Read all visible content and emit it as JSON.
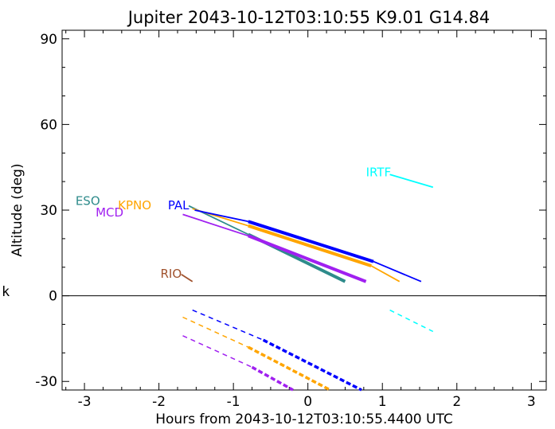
{
  "chart_data": {
    "type": "line",
    "title": "Jupiter 2043-10-12T03:10:55  K9.01  G14.84",
    "xlabel": "Hours from 2043-10-12T03:10:55.4400 UTC",
    "ylabel": "Altitude (deg)",
    "xlim": [
      -3.3,
      3.2
    ],
    "ylim": [
      -33,
      93
    ],
    "xticks": [
      -3,
      -2,
      -1,
      0,
      1,
      2,
      3
    ],
    "yticks": [
      -30,
      0,
      30,
      60,
      90
    ],
    "zero_line": true,
    "side_label": "k",
    "series": [
      {
        "name": "ESO",
        "color": "#2e8b8b",
        "label_at": [
          -3.12,
          33.5
        ],
        "thin": [
          [
            -1.6,
            31.5
          ],
          [
            -0.8,
            21.5
          ]
        ],
        "thick": [
          [
            -0.8,
            21.5
          ],
          [
            0.5,
            5.0
          ]
        ],
        "dashed": [],
        "dashed_thick": []
      },
      {
        "name": "MCD",
        "color": "#a020f0",
        "label_at": [
          -2.85,
          29.5
        ],
        "thin": [
          [
            -1.68,
            28.5
          ],
          [
            -0.8,
            21.0
          ]
        ],
        "thick": [
          [
            -0.8,
            21.0
          ],
          [
            0.78,
            5.0
          ]
        ],
        "dashed": [
          [
            -1.68,
            -14.0
          ],
          [
            -0.75,
            -25.0
          ]
        ],
        "dashed_thick": [
          [
            -0.75,
            -25.0
          ],
          [
            -0.2,
            -33.0
          ]
        ]
      },
      {
        "name": "KPNO",
        "color": "#ffa500",
        "label_at": [
          -2.55,
          32.0
        ],
        "thin": [
          [
            -1.55,
            30.5
          ],
          [
            -0.8,
            24.5
          ],
          [
            -0.8,
            24.5
          ]
        ],
        "thick": [
          [
            -0.8,
            24.5
          ],
          [
            0.85,
            10.5
          ]
        ],
        "thin2": [
          [
            0.85,
            10.5
          ],
          [
            1.23,
            5.0
          ]
        ],
        "dashed": [
          [
            -1.68,
            -7.5
          ],
          [
            -0.8,
            -18.0
          ]
        ],
        "dashed_thick": [
          [
            -0.8,
            -18.0
          ],
          [
            0.3,
            -33.0
          ]
        ]
      },
      {
        "name": "PAL",
        "color": "#0000ff",
        "label_at": [
          -1.88,
          32.0
        ],
        "thin": [
          [
            -1.52,
            30.0
          ],
          [
            -0.8,
            26.0
          ]
        ],
        "thick": [
          [
            -0.8,
            26.0
          ],
          [
            0.88,
            12.0
          ]
        ],
        "thin2": [
          [
            0.88,
            12.0
          ],
          [
            1.52,
            5.0
          ]
        ],
        "dashed": [
          [
            -1.55,
            -5.0
          ],
          [
            -0.6,
            -15.5
          ]
        ],
        "dashed_thick": [
          [
            -0.6,
            -15.5
          ],
          [
            0.72,
            -33.0
          ]
        ]
      },
      {
        "name": "RIO",
        "color": "#a0522d",
        "label_at": [
          -1.98,
          8.0
        ],
        "thin": [
          [
            -1.7,
            7.5
          ],
          [
            -1.55,
            5.0
          ]
        ],
        "thick": [],
        "dashed": [],
        "dashed_thick": []
      },
      {
        "name": "IRTF",
        "color": "#00ffff",
        "label_at": [
          0.78,
          43.5
        ],
        "thin": [
          [
            1.1,
            42.5
          ],
          [
            1.68,
            38.0
          ]
        ],
        "thick": [],
        "dashed": [
          [
            1.1,
            -5.0
          ],
          [
            1.68,
            -12.5
          ]
        ],
        "dashed_thick": []
      }
    ]
  }
}
